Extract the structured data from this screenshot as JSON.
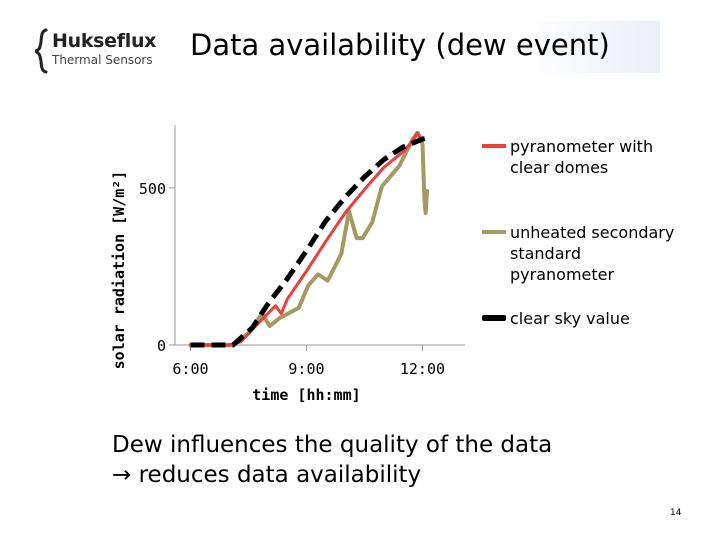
{
  "header": {
    "title": "Data availability (dew event)",
    "logo": {
      "name": "Hukseflux",
      "subtitle": "Thermal Sensors",
      "icon": "brace-logo-icon"
    }
  },
  "chart_data": {
    "type": "line",
    "title": "",
    "xlabel": "time [hh:mm]",
    "ylabel": "solar radiation [W/m²]",
    "xticks": [
      {
        "value": 6,
        "label": "6:00"
      },
      {
        "value": 9,
        "label": "9:00"
      },
      {
        "value": 12,
        "label": "12:00"
      }
    ],
    "yticks": [
      {
        "value": 0,
        "label": "0"
      },
      {
        "value": 500,
        "label": "500"
      }
    ],
    "xlim": [
      5.6,
      13.1
    ],
    "ylim": [
      0,
      700
    ],
    "grid": false,
    "legend_position": "right",
    "series": [
      {
        "name": "pyranometer with clear domes",
        "color": "#e8403f",
        "dash": false,
        "width": 3,
        "points": [
          [
            6.0,
            0
          ],
          [
            6.3,
            0
          ],
          [
            7.0,
            0
          ],
          [
            7.3,
            10
          ],
          [
            7.8,
            75
          ],
          [
            8.2,
            125
          ],
          [
            8.35,
            100
          ],
          [
            8.5,
            145
          ],
          [
            9.0,
            235
          ],
          [
            9.5,
            330
          ],
          [
            10.0,
            420
          ],
          [
            10.5,
            495
          ],
          [
            11.0,
            565
          ],
          [
            11.5,
            615
          ],
          [
            11.75,
            650
          ],
          [
            11.85,
            675
          ],
          [
            12.0,
            652
          ]
        ]
      },
      {
        "name": "unheated secondary standard pyranometer",
        "color": "#a39a62",
        "dash": false,
        "width": 4,
        "points": [
          [
            6.0,
            0
          ],
          [
            6.8,
            0
          ],
          [
            7.1,
            0
          ],
          [
            7.5,
            38
          ],
          [
            7.85,
            100
          ],
          [
            8.05,
            60
          ],
          [
            8.3,
            85
          ],
          [
            8.8,
            118
          ],
          [
            9.05,
            190
          ],
          [
            9.3,
            225
          ],
          [
            9.55,
            205
          ],
          [
            9.9,
            290
          ],
          [
            10.1,
            425
          ],
          [
            10.3,
            340
          ],
          [
            10.45,
            340
          ],
          [
            10.7,
            390
          ],
          [
            10.95,
            505
          ],
          [
            11.4,
            570
          ],
          [
            11.75,
            655
          ],
          [
            11.88,
            675
          ],
          [
            12.0,
            640
          ],
          [
            12.05,
            465
          ],
          [
            12.08,
            420
          ],
          [
            12.12,
            490
          ]
        ]
      },
      {
        "name": "clear sky value",
        "color": "#000000",
        "dash": true,
        "width": 5,
        "points": [
          [
            6.0,
            0
          ],
          [
            6.8,
            0
          ],
          [
            7.1,
            0
          ],
          [
            7.6,
            55
          ],
          [
            8.0,
            130
          ],
          [
            8.5,
            210
          ],
          [
            9.0,
            300
          ],
          [
            9.5,
            395
          ],
          [
            10.0,
            470
          ],
          [
            10.5,
            535
          ],
          [
            11.0,
            590
          ],
          [
            11.5,
            630
          ],
          [
            12.0,
            655
          ],
          [
            12.15,
            660
          ]
        ]
      }
    ]
  },
  "caption": {
    "line1": "Dew influences the quality of the data",
    "line2": " reduces data availability",
    "arrow": "→"
  },
  "footer": {
    "page_number": "14"
  }
}
